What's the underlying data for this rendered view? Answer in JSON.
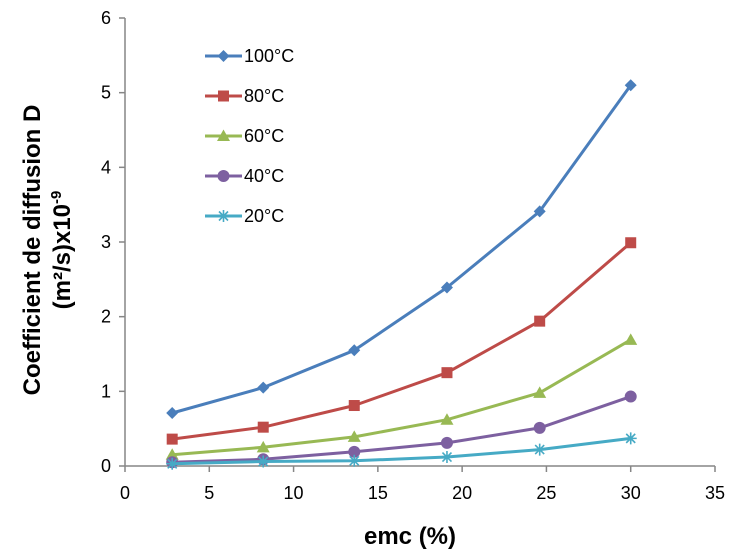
{
  "chart_data": {
    "type": "line",
    "title": "",
    "xlabel": "emc (%)",
    "ylabel_line1": "Coefficient de diffusion D",
    "ylabel_line2_base": "(m²/s)x10",
    "ylabel_line2_exp": "-9",
    "xlim": [
      0,
      35
    ],
    "ylim": [
      0,
      6
    ],
    "x_ticks": [
      0,
      5,
      10,
      15,
      20,
      25,
      30,
      35
    ],
    "y_ticks": [
      0,
      1,
      2,
      3,
      4,
      5,
      6
    ],
    "grid": false,
    "legend_position": "top-left",
    "x": [
      2.8,
      8.2,
      13.6,
      19.1,
      24.6,
      30.0
    ],
    "series": [
      {
        "name": "100°C",
        "color": "#4A7EBB",
        "marker": "diamond",
        "values": [
          0.71,
          1.05,
          1.55,
          2.39,
          3.41,
          5.1
        ]
      },
      {
        "name": "80°C",
        "color": "#BE4B48",
        "marker": "square",
        "values": [
          0.36,
          0.52,
          0.81,
          1.25,
          1.94,
          2.99
        ]
      },
      {
        "name": "60°C",
        "color": "#98B954",
        "marker": "triangle",
        "values": [
          0.15,
          0.25,
          0.39,
          0.62,
          0.98,
          1.69
        ]
      },
      {
        "name": "40°C",
        "color": "#7D60A0",
        "marker": "circle",
        "values": [
          0.05,
          0.09,
          0.19,
          0.31,
          0.51,
          0.93
        ]
      },
      {
        "name": "20°C",
        "color": "#46AAC5",
        "marker": "asterisk",
        "values": [
          0.03,
          0.06,
          0.07,
          0.12,
          0.22,
          0.37
        ]
      }
    ]
  }
}
